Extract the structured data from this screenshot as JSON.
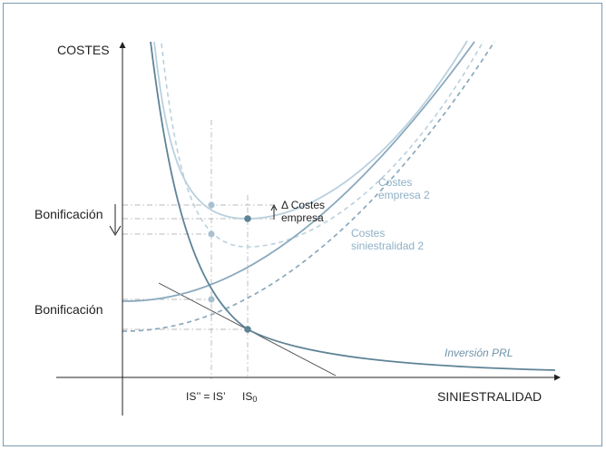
{
  "diagram": {
    "y_axis_label": "COSTES",
    "x_axis_label": "SINIESTRALIDAD",
    "bonus_label_top": "Bonificación",
    "bonus_label_bottom": "Bonificación",
    "delta_label_line1": "Δ Costes",
    "delta_label_line2": "empresa",
    "curve_labels": {
      "costes_empresa_2_line1": "Costes",
      "costes_empresa_2_line2": "empresa 2",
      "costes_siniestralidad_2_line1": "Costes",
      "costes_siniestralidad_2_line2": "siniestralidad 2",
      "inversion_prl": "Inversión PRL"
    },
    "x_ticks": {
      "is_double_prime_eq_is_prime": "IS’’ = IS’",
      "is_zero": "IS",
      "is_zero_sub": "0"
    }
  },
  "colors": {
    "frame": "#7a9bb1",
    "axis": "#222222",
    "dark_curve": "#5f8396",
    "mid_curve": "#8aa9bd",
    "light_curve": "#b9d0de",
    "guide": "#b8b8b8"
  }
}
